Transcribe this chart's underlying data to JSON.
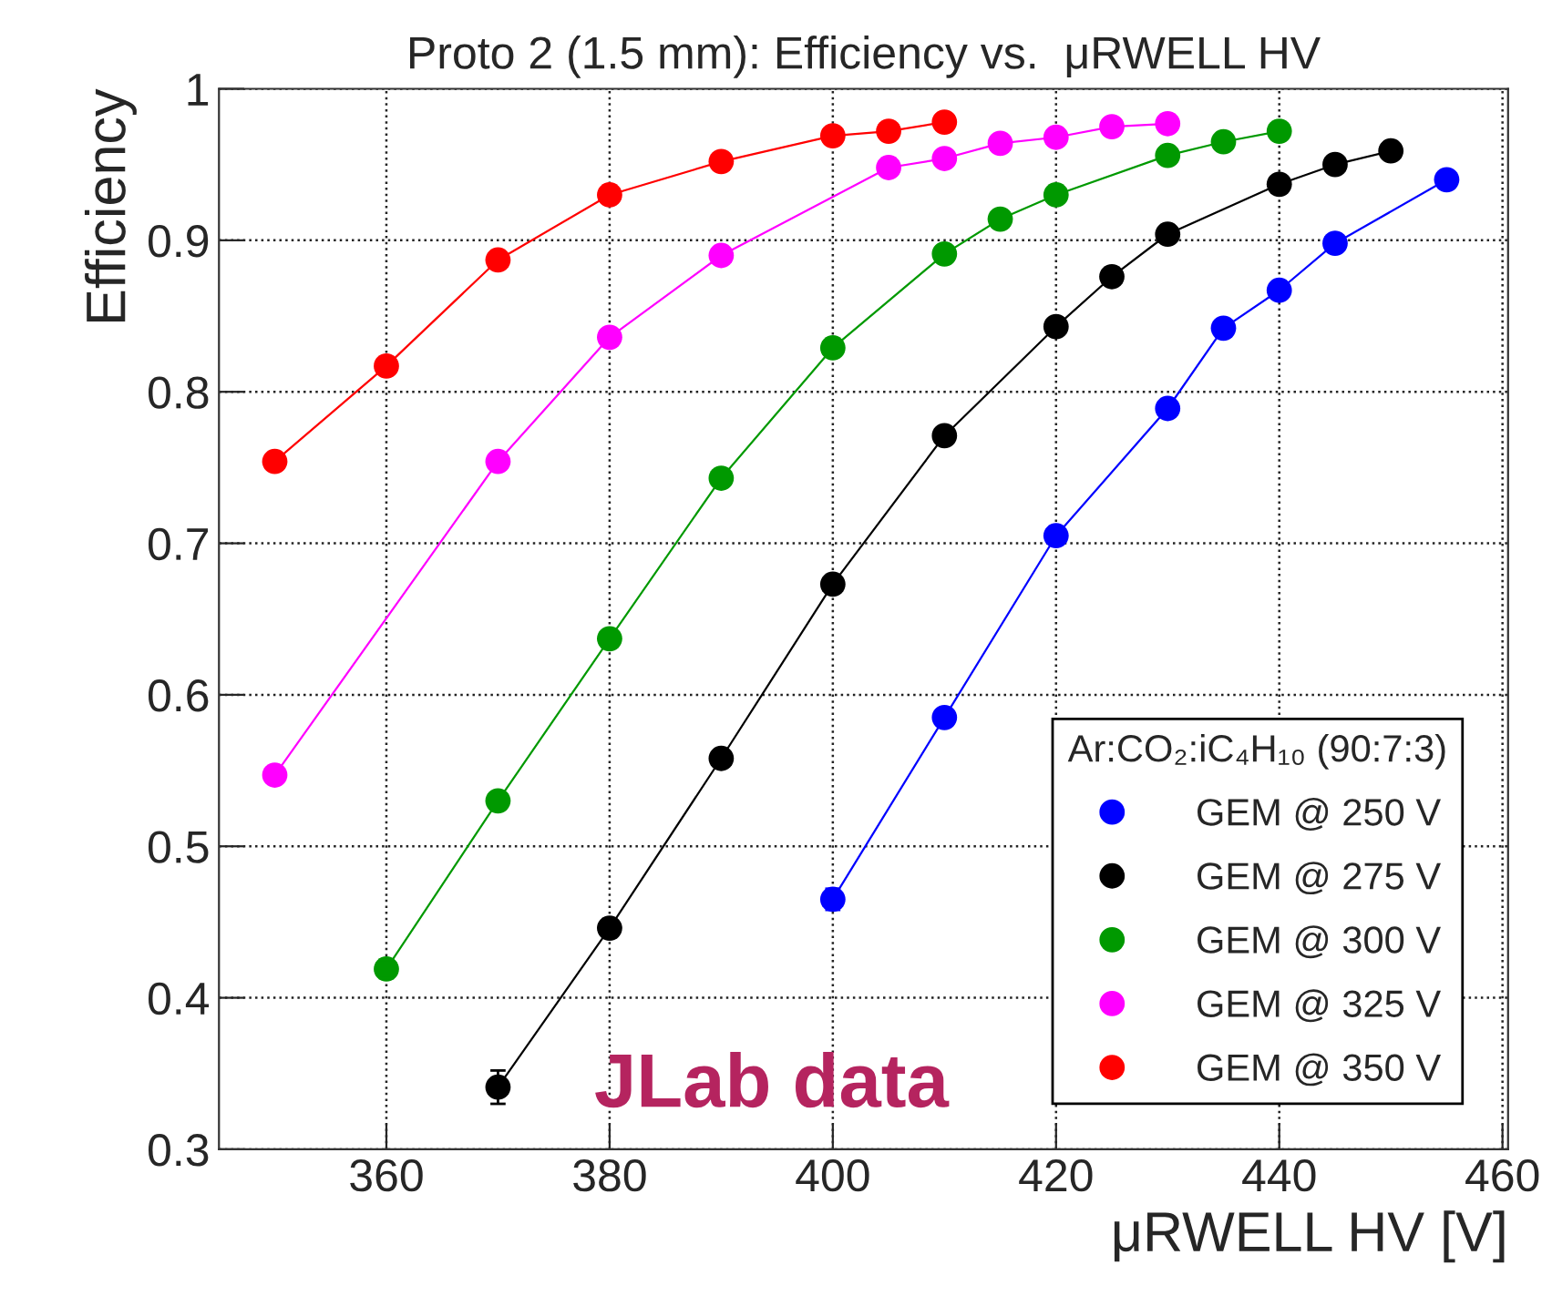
{
  "chart_data": {
    "type": "line",
    "title": "Proto 2 (1.5 mm): Efficiency vs.  μRWELL HV",
    "xlabel": "μRWELL HV [V]",
    "ylabel": "Efficiency",
    "legend_title": "Ar:CO₂:iC₄H₁₀ (90:7:3)",
    "annotations": [
      "JLab data"
    ],
    "xlim": [
      345,
      460.5
    ],
    "xticks": [
      360,
      380,
      400,
      420,
      440,
      460
    ],
    "ylim": [
      0.3,
      1
    ],
    "yticks": [
      0.3,
      0.4,
      0.5,
      0.6,
      0.7,
      0.8,
      0.9,
      1
    ],
    "grid": true,
    "legend": "bottom right",
    "marker": "circle",
    "line_style": "solid",
    "series": [
      {
        "name": "GEM @ 250 V",
        "color": "#0000ff",
        "x": [
          400,
          410,
          420,
          430,
          435,
          440,
          445,
          455
        ],
        "values": [
          0.465,
          0.585,
          0.705,
          0.789,
          0.842,
          0.867,
          0.898,
          0.94
        ],
        "errors": [
          0.007,
          null,
          null,
          null,
          null,
          null,
          null,
          null
        ]
      },
      {
        "name": "GEM @ 275 V",
        "color": "#000000",
        "x": [
          370,
          380,
          390,
          400,
          410,
          420,
          425,
          430,
          440,
          445,
          450
        ],
        "values": [
          0.341,
          0.446,
          0.558,
          0.673,
          0.771,
          0.843,
          0.876,
          0.904,
          0.937,
          0.95,
          0.959
        ],
        "errors": [
          0.011,
          0.006,
          null,
          null,
          null,
          null,
          null,
          null,
          null,
          null,
          null
        ]
      },
      {
        "name": "GEM @ 300 V",
        "color": "#009900",
        "x": [
          360,
          370,
          380,
          390,
          400,
          410,
          415,
          420,
          430,
          435,
          440
        ],
        "values": [
          0.419,
          0.53,
          0.637,
          0.743,
          0.829,
          0.891,
          0.914,
          0.93,
          0.956,
          0.965,
          0.972
        ],
        "errors": [
          0.006,
          null,
          null,
          null,
          null,
          null,
          null,
          null,
          null,
          null,
          null
        ]
      },
      {
        "name": "GEM @ 325 V",
        "color": "#ff00ff",
        "x": [
          350,
          370,
          380,
          390,
          405,
          410,
          415,
          420,
          425,
          430
        ],
        "values": [
          0.547,
          0.754,
          0.836,
          0.89,
          0.948,
          0.954,
          0.964,
          0.968,
          0.975,
          0.977
        ]
      },
      {
        "name": "GEM @ 350 V",
        "color": "#ff0000",
        "x": [
          350,
          360,
          370,
          380,
          390,
          400,
          405,
          410
        ],
        "values": [
          0.754,
          0.817,
          0.887,
          0.93,
          0.952,
          0.969,
          0.972,
          0.978
        ]
      }
    ]
  }
}
